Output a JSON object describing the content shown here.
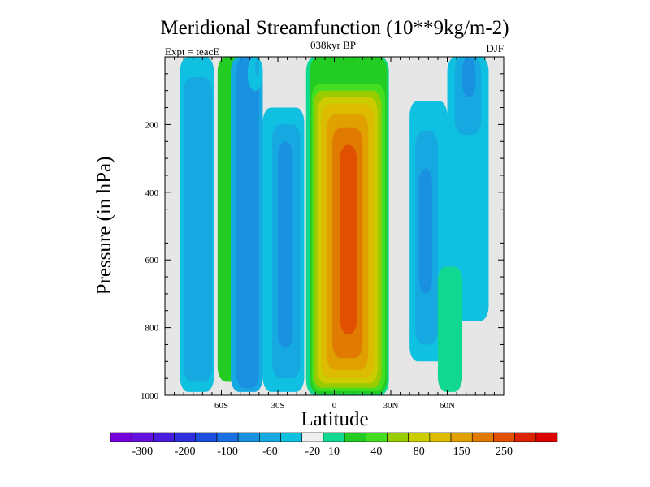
{
  "chart_data": {
    "type": "heatmap",
    "title": "Meridional Streamfunction (10**9kg/m-2)",
    "subtitle": "038kyr BP",
    "left_label": "Expt = teacE",
    "right_label": "DJF",
    "xlabel": "Latitude",
    "ylabel": "Pressure (in hPa)",
    "xlim": [
      -90,
      90
    ],
    "ylim": [
      1000,
      0
    ],
    "x_ticks": [
      {
        "value": -60,
        "label": "60S"
      },
      {
        "value": -30,
        "label": "30S"
      },
      {
        "value": 0,
        "label": "0"
      },
      {
        "value": 30,
        "label": "30N"
      },
      {
        "value": 60,
        "label": "60N"
      }
    ],
    "y_ticks": [
      {
        "value": 200,
        "label": "200"
      },
      {
        "value": 400,
        "label": "400"
      },
      {
        "value": 600,
        "label": "600"
      },
      {
        "value": 800,
        "label": "800"
      },
      {
        "value": 1000,
        "label": "1000"
      }
    ],
    "background_color": "#e6e6e6",
    "colorbar": {
      "colors": [
        "#7700dd",
        "#6611dd",
        "#4a1ddd",
        "#2f2fdd",
        "#1c4fdd",
        "#1a70e0",
        "#1a90e0",
        "#16a8e0",
        "#10c0e0",
        "#eeeeee",
        "#10d890",
        "#22cc22",
        "#44dd22",
        "#99cc00",
        "#cccc00",
        "#ddbb00",
        "#e0a000",
        "#e07a00",
        "#e05000",
        "#dd2200",
        "#dd0000"
      ],
      "labels": [
        {
          "boundary": 1,
          "text": "-300"
        },
        {
          "boundary": 3,
          "text": "-200"
        },
        {
          "boundary": 5,
          "text": "-100"
        },
        {
          "boundary": 7,
          "text": "-60"
        },
        {
          "boundary": 9,
          "text": "-20"
        },
        {
          "boundary": 10,
          "text": "10"
        },
        {
          "boundary": 12,
          "text": "40"
        },
        {
          "boundary": 14,
          "text": "80"
        },
        {
          "boundary": 16,
          "text": "150"
        },
        {
          "boundary": 18,
          "text": "250"
        }
      ]
    },
    "contour_bands": [
      {
        "name": "cell-a-band-1",
        "color": "#16a8e0",
        "lat": [
          -80,
          -65
        ],
        "p": [
          60,
          960
        ]
      },
      {
        "name": "cell-a-band-2",
        "color": "#10c0e0",
        "lat": [
          -82,
          -64
        ],
        "p": [
          0,
          990
        ]
      },
      {
        "name": "cell-b-band-1",
        "color": "#1a90e0",
        "lat": [
          -52,
          -40
        ],
        "p": [
          0,
          980
        ]
      },
      {
        "name": "cell-b-band-2",
        "color": "#16a8e0",
        "lat": [
          -55,
          -38
        ],
        "p": [
          0,
          990
        ]
      },
      {
        "name": "cell-b-band-3",
        "color": "#22cc22",
        "lat": [
          -62,
          -44
        ],
        "p": [
          0,
          960
        ]
      },
      {
        "name": "cell-c-band-1",
        "color": "#1a90e0",
        "lat": [
          -30,
          -22
        ],
        "p": [
          250,
          860
        ]
      },
      {
        "name": "cell-c-band-2",
        "color": "#16a8e0",
        "lat": [
          -33,
          -18
        ],
        "p": [
          200,
          950
        ]
      },
      {
        "name": "cell-c-band-3",
        "color": "#10c0e0",
        "lat": [
          -38,
          -16
        ],
        "p": [
          150,
          990
        ]
      },
      {
        "name": "cell-d-band-1",
        "color": "#e05000",
        "lat": [
          3,
          12
        ],
        "p": [
          260,
          820
        ]
      },
      {
        "name": "cell-d-band-2",
        "color": "#e07a00",
        "lat": [
          -1,
          15
        ],
        "p": [
          210,
          890
        ]
      },
      {
        "name": "cell-d-band-3",
        "color": "#e0a000",
        "lat": [
          -4,
          18
        ],
        "p": [
          170,
          925
        ]
      },
      {
        "name": "cell-d-band-4",
        "color": "#ddbb00",
        "lat": [
          -7,
          21
        ],
        "p": [
          140,
          950
        ]
      },
      {
        "name": "cell-d-band-5",
        "color": "#cccc00",
        "lat": [
          -9,
          23
        ],
        "p": [
          120,
          965
        ]
      },
      {
        "name": "cell-d-band-6",
        "color": "#99cc00",
        "lat": [
          -11,
          25
        ],
        "p": [
          100,
          978
        ]
      },
      {
        "name": "cell-d-band-7",
        "color": "#44dd22",
        "lat": [
          -12,
          27
        ],
        "p": [
          80,
          988
        ]
      },
      {
        "name": "cell-d-band-8",
        "color": "#22cc22",
        "lat": [
          -13,
          28
        ],
        "p": [
          0,
          995
        ]
      },
      {
        "name": "cell-d-band-9",
        "color": "#10d890",
        "lat": [
          -15,
          29
        ],
        "p": [
          0,
          999
        ]
      },
      {
        "name": "cell-e-band-1",
        "color": "#1a90e0",
        "lat": [
          45,
          52
        ],
        "p": [
          330,
          700
        ]
      },
      {
        "name": "cell-e-band-2",
        "color": "#16a8e0",
        "lat": [
          43,
          55
        ],
        "p": [
          220,
          850
        ]
      },
      {
        "name": "cell-e-band-3",
        "color": "#10c0e0",
        "lat": [
          40,
          60
        ],
        "p": [
          130,
          900
        ]
      },
      {
        "name": "cell-f-band-1",
        "color": "#10d890",
        "lat": [
          55,
          68
        ],
        "p": [
          620,
          990
        ]
      },
      {
        "name": "cell-g-band-1",
        "color": "#1a90e0",
        "lat": [
          68,
          75
        ],
        "p": [
          0,
          120
        ]
      },
      {
        "name": "cell-g-band-2",
        "color": "#16a8e0",
        "lat": [
          64,
          78
        ],
        "p": [
          0,
          230
        ]
      },
      {
        "name": "cell-g-band-3",
        "color": "#10c0e0",
        "lat": [
          60,
          82
        ],
        "p": [
          0,
          780
        ]
      },
      {
        "name": "cell-h-band-1",
        "color": "#10c0e0",
        "lat": [
          -46,
          -38
        ],
        "p": [
          0,
          100
        ]
      },
      {
        "name": "cell-h-band-2",
        "color": "#16a8e0",
        "lat": [
          -42,
          -40
        ],
        "p": [
          0,
          60
        ]
      }
    ]
  }
}
